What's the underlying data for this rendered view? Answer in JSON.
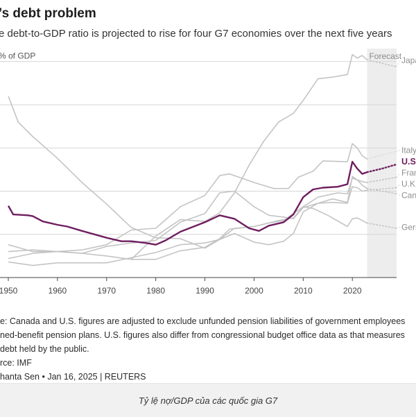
{
  "header": {
    "title": "’s debt problem",
    "subtitle": "e debt-to-GDP ratio is projected to rise for four G7 economies over the next five years"
  },
  "notes": {
    "line1": "e: Canada and U.S. figures are adjusted to exclude unfunded pension liabilities of government employees",
    "line2": "ned-benefit pension plans. U.S. figures also differ from congressional budget office data as that measures",
    "line3": "debt held by the public.",
    "source": "rce: IMF",
    "credit": "hanta Sen • Jan 16, 2025 | REUTERS"
  },
  "caption": "Tỷ lệ nợ/GDP của các quốc gia G7",
  "chart_data": {
    "type": "line",
    "ylabel": "% of GDP",
    "x_ticks": [
      1950,
      1960,
      1970,
      1980,
      1990,
      2000,
      2010,
      2020
    ],
    "y_gridlines": [
      50,
      100,
      150,
      200,
      250
    ],
    "xlim": [
      1949,
      2029
    ],
    "ylim": [
      0,
      265
    ],
    "forecast": {
      "label": "Forecast",
      "start": 2023,
      "end": 2029
    },
    "colors": {
      "highlight": "#6f1d5f",
      "other": "#c4c4c4",
      "forecast_band": "#ededed"
    },
    "series": [
      {
        "name": "Japan",
        "highlight": false,
        "points": [
          [
            1975,
            21
          ],
          [
            1980,
            48
          ],
          [
            1985,
            67
          ],
          [
            1990,
            65
          ],
          [
            1993,
            75
          ],
          [
            1996,
            98
          ],
          [
            1999,
            130
          ],
          [
            2002,
            158
          ],
          [
            2005,
            180
          ],
          [
            2008,
            190
          ],
          [
            2010,
            205
          ],
          [
            2013,
            230
          ],
          [
            2016,
            232
          ],
          [
            2019,
            235
          ],
          [
            2020,
            258
          ],
          [
            2021,
            254
          ],
          [
            2022,
            257
          ],
          [
            2023,
            252
          ]
        ],
        "forecast": [
          [
            2023,
            252
          ],
          [
            2026,
            248
          ],
          [
            2029,
            244
          ]
        ]
      },
      {
        "name": "Italy",
        "highlight": false,
        "points": [
          [
            1950,
            30
          ],
          [
            1955,
            32
          ],
          [
            1960,
            30
          ],
          [
            1965,
            32
          ],
          [
            1970,
            38
          ],
          [
            1975,
            55
          ],
          [
            1980,
            57
          ],
          [
            1985,
            82
          ],
          [
            1990,
            95
          ],
          [
            1993,
            118
          ],
          [
            1995,
            120
          ],
          [
            2000,
            110
          ],
          [
            2004,
            103
          ],
          [
            2007,
            103
          ],
          [
            2009,
            116
          ],
          [
            2012,
            123
          ],
          [
            2014,
            135
          ],
          [
            2019,
            134
          ],
          [
            2020,
            155
          ],
          [
            2021,
            150
          ],
          [
            2022,
            141
          ],
          [
            2023,
            137
          ]
        ]
      },
      {
        "name": "U.S.",
        "highlight": true,
        "points": [
          [
            1950,
            83
          ],
          [
            1951,
            73
          ],
          [
            1954,
            72
          ],
          [
            1955,
            71
          ],
          [
            1957,
            65
          ],
          [
            1960,
            61
          ],
          [
            1962,
            59
          ],
          [
            1965,
            54
          ],
          [
            1970,
            46
          ],
          [
            1973,
            42
          ],
          [
            1975,
            42
          ],
          [
            1978,
            40
          ],
          [
            1980,
            38
          ],
          [
            1982,
            43
          ],
          [
            1985,
            53
          ],
          [
            1990,
            64
          ],
          [
            1993,
            72
          ],
          [
            1996,
            68
          ],
          [
            1999,
            57
          ],
          [
            2001,
            54
          ],
          [
            2003,
            60
          ],
          [
            2006,
            64
          ],
          [
            2008,
            73
          ],
          [
            2010,
            93
          ],
          [
            2012,
            102
          ],
          [
            2014,
            104
          ],
          [
            2017,
            105
          ],
          [
            2019,
            108
          ],
          [
            2020,
            134
          ],
          [
            2021,
            126
          ],
          [
            2022,
            120
          ],
          [
            2023,
            122
          ]
        ],
        "forecast": [
          [
            2023,
            122
          ],
          [
            2026,
            126
          ],
          [
            2029,
            131
          ]
        ]
      },
      {
        "name": "France",
        "highlight": false,
        "points": [
          [
            1950,
            22
          ],
          [
            1955,
            28
          ],
          [
            1960,
            30
          ],
          [
            1965,
            28
          ],
          [
            1970,
            25
          ],
          [
            1975,
            21
          ],
          [
            1980,
            21
          ],
          [
            1985,
            31
          ],
          [
            1990,
            35
          ],
          [
            1993,
            45
          ],
          [
            1995,
            56
          ],
          [
            2000,
            59
          ],
          [
            2005,
            66
          ],
          [
            2008,
            69
          ],
          [
            2010,
            82
          ],
          [
            2013,
            93
          ],
          [
            2017,
            98
          ],
          [
            2019,
            97
          ],
          [
            2020,
            115
          ],
          [
            2021,
            113
          ],
          [
            2022,
            111
          ],
          [
            2023,
            110
          ]
        ],
        "forecast": [
          [
            2023,
            110
          ],
          [
            2029,
            116
          ]
        ]
      },
      {
        "name": "U.K.",
        "highlight": false,
        "points": [
          [
            1950,
            210
          ],
          [
            1952,
            180
          ],
          [
            1955,
            163
          ],
          [
            1960,
            138
          ],
          [
            1965,
            110
          ],
          [
            1970,
            85
          ],
          [
            1975,
            58
          ],
          [
            1980,
            46
          ],
          [
            1985,
            45
          ],
          [
            1990,
            34
          ],
          [
            1993,
            44
          ],
          [
            1996,
            51
          ],
          [
            2000,
            41
          ],
          [
            2003,
            38
          ],
          [
            2006,
            42
          ],
          [
            2008,
            51
          ],
          [
            2010,
            76
          ],
          [
            2013,
            86
          ],
          [
            2016,
            87
          ],
          [
            2019,
            86
          ],
          [
            2020,
            105
          ],
          [
            2021,
            104
          ],
          [
            2022,
            100
          ],
          [
            2023,
            101
          ]
        ],
        "forecast": [
          [
            2023,
            101
          ],
          [
            2029,
            104
          ]
        ]
      },
      {
        "name": "Canada",
        "highlight": false,
        "points": [
          [
            1950,
            38
          ],
          [
            1955,
            30
          ],
          [
            1960,
            30
          ],
          [
            1965,
            28
          ],
          [
            1970,
            36
          ],
          [
            1975,
            40
          ],
          [
            1980,
            43
          ],
          [
            1985,
            64
          ],
          [
            1990,
            74
          ],
          [
            1993,
            98
          ],
          [
            1996,
            100
          ],
          [
            2000,
            82
          ],
          [
            2003,
            72
          ],
          [
            2006,
            70
          ],
          [
            2008,
            68
          ],
          [
            2010,
            81
          ],
          [
            2013,
            86
          ],
          [
            2016,
            91
          ],
          [
            2019,
            87
          ],
          [
            2020,
            117
          ],
          [
            2021,
            113
          ],
          [
            2022,
            107
          ],
          [
            2023,
            103
          ]
        ],
        "forecast": [
          [
            2023,
            103
          ],
          [
            2029,
            97
          ]
        ]
      },
      {
        "name": "Germany",
        "highlight": false,
        "points": [
          [
            1950,
            18
          ],
          [
            1955,
            14
          ],
          [
            1960,
            17
          ],
          [
            1965,
            17
          ],
          [
            1970,
            17
          ],
          [
            1975,
            23
          ],
          [
            1980,
            29
          ],
          [
            1985,
            38
          ],
          [
            1990,
            40
          ],
          [
            1993,
            44
          ],
          [
            1996,
            57
          ],
          [
            2000,
            59
          ],
          [
            2003,
            63
          ],
          [
            2006,
            66
          ],
          [
            2010,
            82
          ],
          [
            2012,
            80
          ],
          [
            2015,
            72
          ],
          [
            2019,
            59
          ],
          [
            2020,
            68
          ],
          [
            2021,
            69
          ],
          [
            2022,
            66
          ],
          [
            2023,
            63
          ]
        ],
        "forecast": [
          [
            2023,
            63
          ],
          [
            2029,
            57
          ]
        ]
      }
    ]
  }
}
